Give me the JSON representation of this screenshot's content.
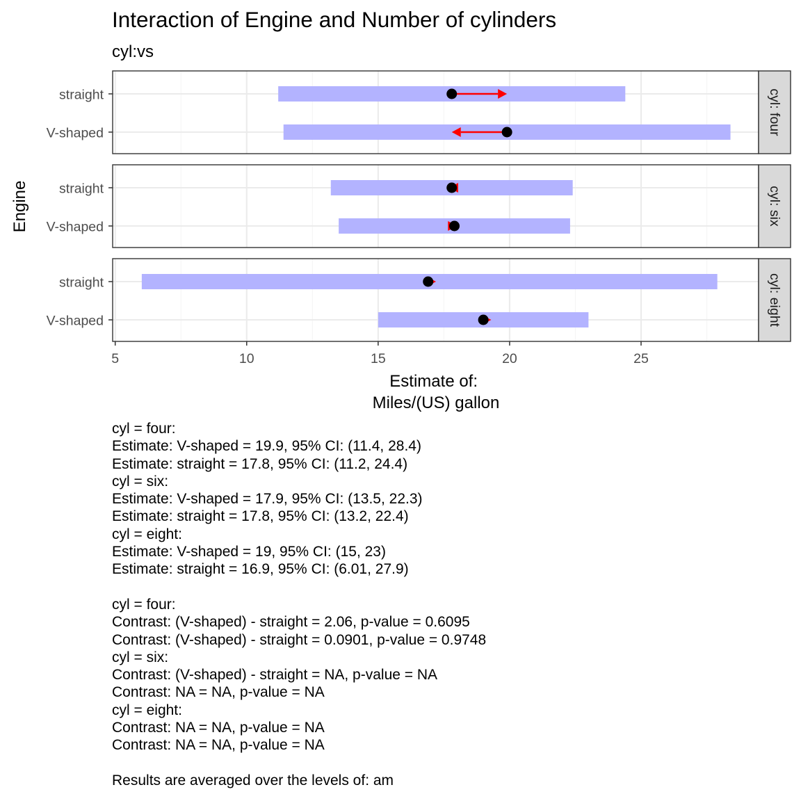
{
  "chart_data": {
    "type": "dot-interval",
    "title": "Interaction of Engine and Number of cylinders",
    "subtitle": "cyl:vs",
    "xlabel_lines": [
      "Estimate of:",
      "Miles/(US) gallon"
    ],
    "ylabel": "Engine",
    "xlim": [
      5,
      29.5
    ],
    "x_ticks": [
      5,
      10,
      15,
      20,
      25
    ],
    "grid": true,
    "categories": [
      "straight",
      "V-shaped"
    ],
    "panels": [
      {
        "strip_label": "cyl: four",
        "rows": [
          {
            "label": "straight",
            "estimate": 17.8,
            "ci": [
              11.2,
              24.4
            ],
            "arrow_to": 19.9
          },
          {
            "label": "V-shaped",
            "estimate": 19.9,
            "ci": [
              11.4,
              28.4
            ],
            "arrow_to": 17.8
          }
        ]
      },
      {
        "strip_label": "cyl: six",
        "rows": [
          {
            "label": "straight",
            "estimate": 17.8,
            "ci": [
              13.2,
              22.4
            ],
            "arrow_to": 17.7
          },
          {
            "label": "V-shaped",
            "estimate": 17.9,
            "ci": [
              13.5,
              22.3
            ],
            "arrow_to": 18.0
          }
        ]
      },
      {
        "strip_label": "cyl: eight",
        "rows": [
          {
            "label": "straight",
            "estimate": 16.9,
            "ci": [
              6.01,
              27.9
            ],
            "arrow_to": 17.2
          },
          {
            "label": "V-shaped",
            "estimate": 19.0,
            "ci": [
              15.0,
              23.0
            ],
            "arrow_to": 19.3
          }
        ]
      }
    ],
    "colors": {
      "ci_bar": "#b3b3ff",
      "point": "#000000",
      "arrow": "#ff0000",
      "strip_fill": "#d9d9d9",
      "grid_major": "#ebebeb",
      "grid_minor": "#f5f5f5",
      "panel_border": "#333333",
      "axis_text": "#4d4d4d"
    }
  },
  "notes": [
    "cyl = four:",
    "Estimate: V-shaped = 19.9, 95% CI: (11.4, 28.4)",
    "Estimate: straight = 17.8, 95% CI: (11.2, 24.4)",
    "cyl = six:",
    "Estimate: V-shaped = 17.9, 95% CI: (13.5, 22.3)",
    "Estimate: straight = 17.8, 95% CI: (13.2, 22.4)",
    "cyl = eight:",
    "Estimate: V-shaped = 19, 95% CI: (15, 23)",
    "Estimate: straight = 16.9, 95% CI: (6.01, 27.9)",
    "",
    "cyl = four:",
    "Contrast: (V-shaped) - straight = 2.06, p-value = 0.6095",
    "Contrast: (V-shaped) - straight = 0.0901, p-value = 0.9748",
    "cyl = six:",
    "Contrast: (V-shaped) - straight = NA, p-value = NA",
    "Contrast: NA = NA, p-value = NA",
    "cyl = eight:",
    "Contrast: NA = NA, p-value = NA",
    "Contrast: NA = NA, p-value = NA",
    "",
    "Results are averaged over the levels of: am"
  ]
}
